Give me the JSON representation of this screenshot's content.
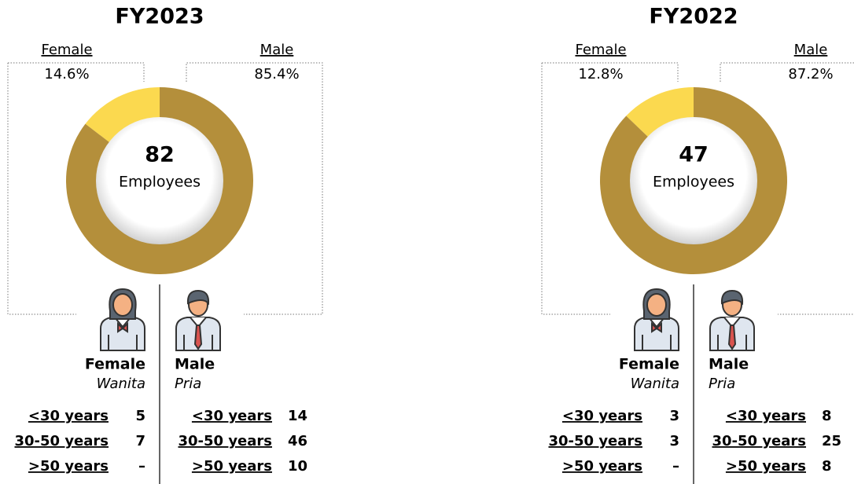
{
  "chart_data": [
    {
      "type": "donut",
      "title": "FY2023",
      "categories": [
        "Female",
        "Male"
      ],
      "values": [
        14.6,
        85.4
      ],
      "value_labels": [
        "14.6%",
        "85.4%"
      ],
      "colors": [
        "#fbd94f",
        "#b48f3b"
      ],
      "center_value": 82,
      "center_label": "Employees",
      "groups": [
        {
          "name": "Female",
          "subtitle": "Wanita",
          "rows": [
            {
              "label": "<30 years",
              "value": 5
            },
            {
              "label": "30-50 years",
              "value": 7
            },
            {
              "label": ">50 years",
              "value": "–"
            }
          ]
        },
        {
          "name": "Male",
          "subtitle": "Pria",
          "rows": [
            {
              "label": "<30 years",
              "value": 14
            },
            {
              "label": "30-50 years",
              "value": 46
            },
            {
              "label": ">50 years",
              "value": 10
            }
          ]
        }
      ]
    },
    {
      "type": "donut",
      "title": "FY2022",
      "categories": [
        "Female",
        "Male"
      ],
      "values": [
        12.8,
        87.2
      ],
      "value_labels": [
        "12.8%",
        "87.2%"
      ],
      "colors": [
        "#fbd94f",
        "#b48f3b"
      ],
      "center_value": 47,
      "center_label": "Employees",
      "groups": [
        {
          "name": "Female",
          "subtitle": "Wanita",
          "rows": [
            {
              "label": "<30 years",
              "value": 3
            },
            {
              "label": "30-50 years",
              "value": 3
            },
            {
              "label": ">50 years",
              "value": "–"
            }
          ]
        },
        {
          "name": "Male",
          "subtitle": "Pria",
          "rows": [
            {
              "label": "<30 years",
              "value": 8
            },
            {
              "label": "30-50 years",
              "value": 25
            },
            {
              "label": ">50 years",
              "value": 8
            }
          ]
        }
      ]
    }
  ]
}
